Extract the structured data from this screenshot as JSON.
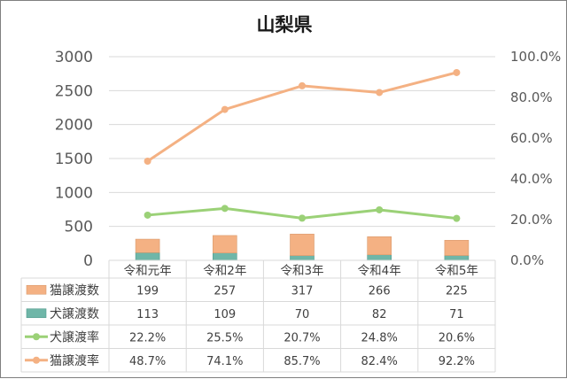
{
  "chart_data": {
    "type": "bar",
    "title": "山梨県",
    "categories": [
      "令和元年",
      "令和2年",
      "令和3年",
      "令和4年",
      "令和5年"
    ],
    "stacked_bars": [
      {
        "name": "猫譲渡数",
        "values": [
          199,
          257,
          317,
          266,
          225
        ],
        "color": "#F4B183"
      },
      {
        "name": "犬譲渡数",
        "values": [
          113,
          109,
          70,
          82,
          71
        ],
        "color": "#6FB6A8"
      }
    ],
    "lines": [
      {
        "name": "犬譲渡率",
        "values": [
          22.2,
          25.5,
          20.7,
          24.8,
          20.6
        ],
        "color": "#9BD177",
        "axis": "right"
      },
      {
        "name": "猫譲渡率",
        "values": [
          48.7,
          74.1,
          85.7,
          82.4,
          92.2
        ],
        "color": "#F4B183",
        "axis": "right"
      }
    ],
    "table_values": {
      "猫譲渡数": [
        "199",
        "257",
        "317",
        "266",
        "225"
      ],
      "犬譲渡数": [
        "113",
        "109",
        "70",
        "82",
        "71"
      ],
      "犬譲渡率": [
        "22.2%",
        "25.5%",
        "20.7%",
        "24.8%",
        "20.6%"
      ],
      "猫譲渡率": [
        "48.7%",
        "74.1%",
        "85.7%",
        "82.4%",
        "92.2%"
      ]
    },
    "ylim_left": [
      0,
      3000
    ],
    "yticks_left": [
      "0",
      "500",
      "1000",
      "1500",
      "2000",
      "2500",
      "3000"
    ],
    "ylim_right": [
      0,
      100
    ],
    "yticks_right": [
      "0.0%",
      "20.0%",
      "40.0%",
      "60.0%",
      "80.0%",
      "100.0%"
    ],
    "grid": true,
    "legend": "data-table"
  }
}
